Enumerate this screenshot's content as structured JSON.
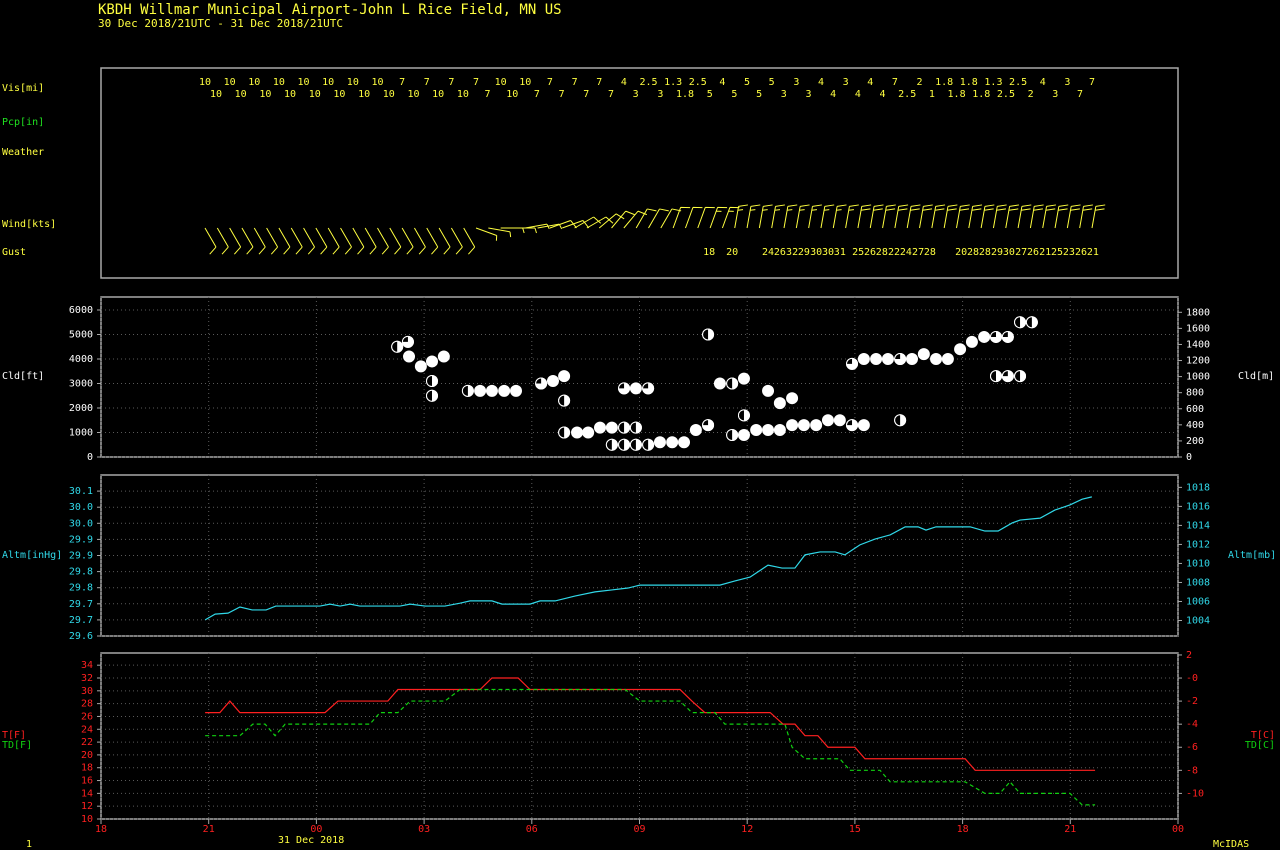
{
  "header": {
    "title": "KBDH  Willmar Municipal Airport-John L Rice Field, MN US",
    "subtitle": "30 Dec 2018/21UTC - 31 Dec 2018/21UTC",
    "date_label": "31 Dec 2018",
    "footer_left": "1",
    "footer_right": "McIDAS"
  },
  "chart_data": [
    {
      "type": "station",
      "labels": {
        "vis": "Vis[mi]",
        "pcp": "Pcp[in]",
        "weather": "Weather",
        "wind": "Wind[kts]",
        "gust": "Gust"
      },
      "vis_top": [
        10,
        10,
        10,
        10,
        10,
        10,
        10,
        10,
        7,
        7,
        7,
        7,
        10,
        10,
        7,
        7,
        7,
        4,
        2.5,
        1.3,
        2.5,
        4,
        5,
        5,
        3,
        4,
        3,
        4,
        7,
        2,
        1.8,
        1.8,
        1.3,
        2.5,
        4,
        3,
        7
      ],
      "vis_bottom": [
        10,
        10,
        10,
        10,
        10,
        10,
        10,
        10,
        10,
        10,
        10,
        7,
        10,
        7,
        7,
        7,
        7,
        3,
        3,
        1.8,
        5,
        5,
        5,
        3,
        3,
        4,
        4,
        4,
        2.5,
        1,
        1.8,
        1.8,
        2.5,
        2,
        3,
        7
      ],
      "wind_dir": [
        150,
        150,
        150,
        150,
        150,
        150,
        150,
        150,
        150,
        150,
        150,
        150,
        150,
        150,
        150,
        150,
        150,
        150,
        150,
        150,
        150,
        150,
        110,
        100,
        90,
        90,
        80,
        80,
        70,
        70,
        60,
        60,
        50,
        40,
        40,
        30,
        30,
        30,
        20,
        20,
        20,
        20,
        20,
        10,
        10,
        10,
        10,
        10,
        10,
        10,
        10,
        10,
        10,
        10,
        10,
        10,
        10,
        10,
        10,
        10,
        10,
        10,
        10,
        10,
        10,
        10,
        10,
        10,
        10,
        10,
        10,
        10,
        10
      ],
      "wind_speed": [
        10,
        10,
        10,
        10,
        10,
        10,
        10,
        10,
        10,
        10,
        10,
        10,
        10,
        10,
        10,
        10,
        10,
        10,
        10,
        10,
        10,
        10,
        5,
        5,
        5,
        5,
        5,
        5,
        10,
        10,
        10,
        10,
        10,
        10,
        10,
        10,
        10,
        10,
        10,
        10,
        10,
        15,
        15,
        15,
        15,
        15,
        15,
        15,
        15,
        15,
        15,
        15,
        15,
        20,
        20,
        20,
        20,
        20,
        20,
        20,
        20,
        20,
        20,
        20,
        20,
        20,
        20,
        20,
        20,
        20,
        20,
        20,
        20
      ],
      "gust_x": [
        16.94,
        17.58,
        18.58,
        18.91,
        19.25,
        19.58,
        19.92,
        20.25,
        20.58,
        21.09,
        21.42,
        21.75,
        22.09,
        22.42,
        22.76,
        23.09,
        23.96,
        24.29,
        24.62,
        24.96,
        25.29,
        25.63,
        25.96,
        26.3,
        26.63,
        26.96,
        27.3,
        27.63
      ],
      "gust": [
        18,
        20,
        24,
        26,
        32,
        29,
        30,
        30,
        31,
        25,
        26,
        28,
        22,
        24,
        27,
        28,
        20,
        28,
        28,
        29,
        30,
        27,
        26,
        21,
        25,
        23,
        26,
        21
      ],
      "color": "#ffff40"
    },
    {
      "type": "scatter",
      "ylabel": "Cld[ft]",
      "y2label": "Cld[m]",
      "ylim": [
        0,
        6530
      ],
      "yticks": [
        0,
        1000,
        2000,
        3000,
        4000,
        5000,
        6000
      ],
      "y2lim": [
        0,
        1990.3
      ],
      "y2ticks": [
        0,
        200,
        400,
        600,
        800,
        1000,
        1200,
        1400,
        1600,
        1800
      ],
      "grid": true,
      "x": [
        8.25,
        8.55,
        8.58,
        8.91,
        9.22,
        9.55,
        9.22,
        9.22,
        10.22,
        10.56,
        10.89,
        11.23,
        11.56,
        12.26,
        12.59,
        12.9,
        12.9,
        12.9,
        13.26,
        13.57,
        13.9,
        14.23,
        14.23,
        14.57,
        14.57,
        14.57,
        14.9,
        14.9,
        14.9,
        15.24,
        15.24,
        15.57,
        15.91,
        16.24,
        16.57,
        16.91,
        16.91,
        17.24,
        17.58,
        17.58,
        17.91,
        17.91,
        17.91,
        18.25,
        18.58,
        18.58,
        18.91,
        18.91,
        19.25,
        19.25,
        19.58,
        19.92,
        20.25,
        20.58,
        20.92,
        20.92,
        21.25,
        21.25,
        21.59,
        21.92,
        22.26,
        22.26,
        22.59,
        22.92,
        23.26,
        23.59,
        23.93,
        24.26,
        24.6,
        24.93,
        24.93,
        25.26,
        25.26,
        25.6,
        25.6,
        25.93
      ],
      "values": [
        4500,
        4700,
        4100,
        3700,
        3900,
        4100,
        3100,
        2500,
        2700,
        2700,
        2700,
        2700,
        2700,
        3000,
        3100,
        3300,
        2300,
        1000,
        1000,
        1000,
        1200,
        1200,
        500,
        1200,
        500,
        2800,
        2800,
        1200,
        500,
        2800,
        500,
        600,
        600,
        600,
        1100,
        5000,
        1300,
        3000,
        3000,
        900,
        3200,
        1700,
        900,
        1100,
        2700,
        1100,
        1100,
        2200,
        2400,
        1300,
        1300,
        1300,
        1500,
        1500,
        1300,
        3800,
        1300,
        4000,
        4000,
        4000,
        4000,
        1500,
        4000,
        4200,
        4000,
        4000,
        4400,
        4700,
        4900,
        4900,
        3300,
        4900,
        3300,
        3300,
        5500,
        5500
      ],
      "cover": [
        0.5,
        0.75,
        1,
        1,
        1,
        1,
        0.5,
        0.5,
        0.5,
        1,
        1,
        1,
        1,
        0.75,
        1,
        1,
        0.5,
        0.5,
        1,
        1,
        1,
        1,
        0.5,
        0.5,
        0.5,
        0.75,
        1,
        0.5,
        0.5,
        0.75,
        0.5,
        1,
        1,
        1,
        1,
        0.5,
        0.75,
        1,
        0.5,
        0.5,
        1,
        0.5,
        1,
        1,
        1,
        1,
        1,
        1,
        1,
        1,
        1,
        1,
        1,
        1,
        0.75,
        0.75,
        1,
        1,
        1,
        1,
        0.75,
        0.5,
        1,
        1,
        1,
        1,
        1,
        1,
        1,
        0.75,
        0.5,
        0.75,
        0.75,
        0.5,
        0.5,
        0.5
      ],
      "color": "#ffffff"
    },
    {
      "type": "line",
      "ylabel": "Altm[inHg]",
      "y2label": "Altm[mb]",
      "ylim": [
        29.6,
        30.1
      ],
      "yticks": [
        29.6,
        {
          "value": 29.65,
          "label": "29.7"
        },
        29.7,
        {
          "value": 29.75,
          "label": "29.8"
        },
        29.8,
        {
          "value": 29.85,
          "label": "29.9"
        },
        29.9,
        {
          "value": 29.95,
          "label": "30.0"
        },
        {
          "value": 30,
          "label": "30.0"
        },
        {
          "value": 30.05,
          "label": "30.1"
        }
      ],
      "y2lim": [
        1002.37,
        1019.3
      ],
      "y2ticks": [
        1004,
        1006,
        1008,
        1010,
        1012,
        1014,
        1016,
        1018
      ],
      "grid": true,
      "x": [
        2.9,
        3.18,
        3.54,
        3.87,
        4.21,
        4.6,
        4.87,
        6.1,
        6.38,
        6.66,
        6.94,
        7.21,
        8.33,
        8.61,
        9.03,
        9.58,
        10.0,
        10.28,
        10.89,
        11.17,
        11.95,
        12.23,
        12.65,
        13.2,
        13.76,
        14.23,
        14.68,
        15.01,
        17.24,
        17.66,
        18.08,
        18.58,
        18.97,
        19.33,
        19.61,
        20.03,
        20.45,
        20.72,
        21.14,
        21.56,
        21.98,
        22.4,
        22.76,
        22.98,
        23.26,
        24.21,
        24.62,
        24.99,
        25.38,
        25.6,
        26.16,
        26.57,
        26.99,
        27.33,
        27.6
      ],
      "values": [
        29.65,
        29.668,
        29.671,
        29.69,
        29.681,
        29.681,
        29.693,
        29.693,
        29.699,
        29.693,
        29.699,
        29.693,
        29.693,
        29.699,
        29.693,
        29.693,
        29.702,
        29.709,
        29.709,
        29.699,
        29.699,
        29.709,
        29.709,
        29.724,
        29.737,
        29.743,
        29.749,
        29.758,
        29.758,
        29.771,
        29.783,
        29.82,
        29.811,
        29.811,
        29.852,
        29.861,
        29.861,
        29.852,
        29.883,
        29.901,
        29.914,
        29.939,
        29.939,
        29.929,
        29.939,
        29.939,
        29.926,
        29.926,
        29.951,
        29.96,
        29.966,
        29.991,
        30.007,
        30.025,
        30.032
      ],
      "color": "#30d8e8"
    },
    {
      "type": "line",
      "y2labels": [
        "T[C]",
        "TD[C]"
      ],
      "xlim": [
        0,
        30
      ],
      "xticks": [
        {
          "value": 0,
          "label": "18"
        },
        {
          "value": 3,
          "label": "21"
        },
        {
          "value": 6,
          "label": "00"
        },
        {
          "value": 9,
          "label": "03"
        },
        {
          "value": 12,
          "label": "06"
        },
        {
          "value": 15,
          "label": "09"
        },
        {
          "value": 18,
          "label": "12"
        },
        {
          "value": 21,
          "label": "15"
        },
        {
          "value": 24,
          "label": "18"
        },
        {
          "value": 27,
          "label": "21"
        },
        {
          "value": 30,
          "label": "00"
        }
      ],
      "ylim": [
        10,
        35.9
      ],
      "yticks": [
        10,
        12,
        14,
        16,
        18,
        20,
        22,
        24,
        26,
        28,
        30,
        32,
        34
      ],
      "y2lim": [
        -12.22,
        2.17
      ],
      "y2ticks": [
        -10,
        -8,
        -6,
        -4,
        -2,
        {
          "value": 0,
          "label": "-0"
        },
        2
      ],
      "grid": true,
      "series": [
        {
          "name": "T[F]",
          "color": "#ff2020",
          "style": "solid",
          "x": [
            2.9,
            3.31,
            3.59,
            3.87,
            6.24,
            6.6,
            7.99,
            8.27,
            10.56,
            10.89,
            11.62,
            11.95,
            16.13,
            16.46,
            16.82,
            18.64,
            19.0,
            19.33,
            19.61,
            19.97,
            20.25,
            21.0,
            21.28,
            24.07,
            24.35,
            27.69
          ],
          "values": [
            26.6,
            26.6,
            28.4,
            26.6,
            26.6,
            28.4,
            28.4,
            30.2,
            30.2,
            32,
            32,
            30.2,
            30.2,
            28.4,
            26.6,
            26.6,
            24.8,
            24.8,
            23,
            23,
            21.2,
            21.2,
            19.4,
            19.4,
            17.6,
            17.6
          ]
        },
        {
          "name": "TD[F]",
          "color": "#10d010",
          "style": "dashed",
          "x": [
            2.9,
            3.87,
            4.23,
            4.57,
            4.85,
            5.13,
            7.49,
            7.77,
            8.27,
            8.61,
            9.58,
            10.0,
            14.6,
            15.01,
            16.13,
            16.46,
            17.1,
            17.38,
            19.05,
            19.25,
            19.61,
            20.58,
            20.86,
            21.7,
            21.98,
            24.07,
            24.62,
            25.04,
            25.32,
            25.6,
            26.99,
            27.33,
            27.69
          ],
          "values": [
            23,
            23,
            24.8,
            24.8,
            23,
            24.8,
            24.8,
            26.6,
            26.6,
            28.4,
            28.4,
            30.2,
            30.2,
            28.4,
            28.4,
            26.6,
            26.6,
            24.8,
            24.8,
            21.2,
            19.4,
            19.4,
            17.6,
            17.6,
            15.8,
            15.8,
            14,
            14,
            15.8,
            14,
            14,
            12.2,
            12.2
          ]
        }
      ]
    }
  ]
}
